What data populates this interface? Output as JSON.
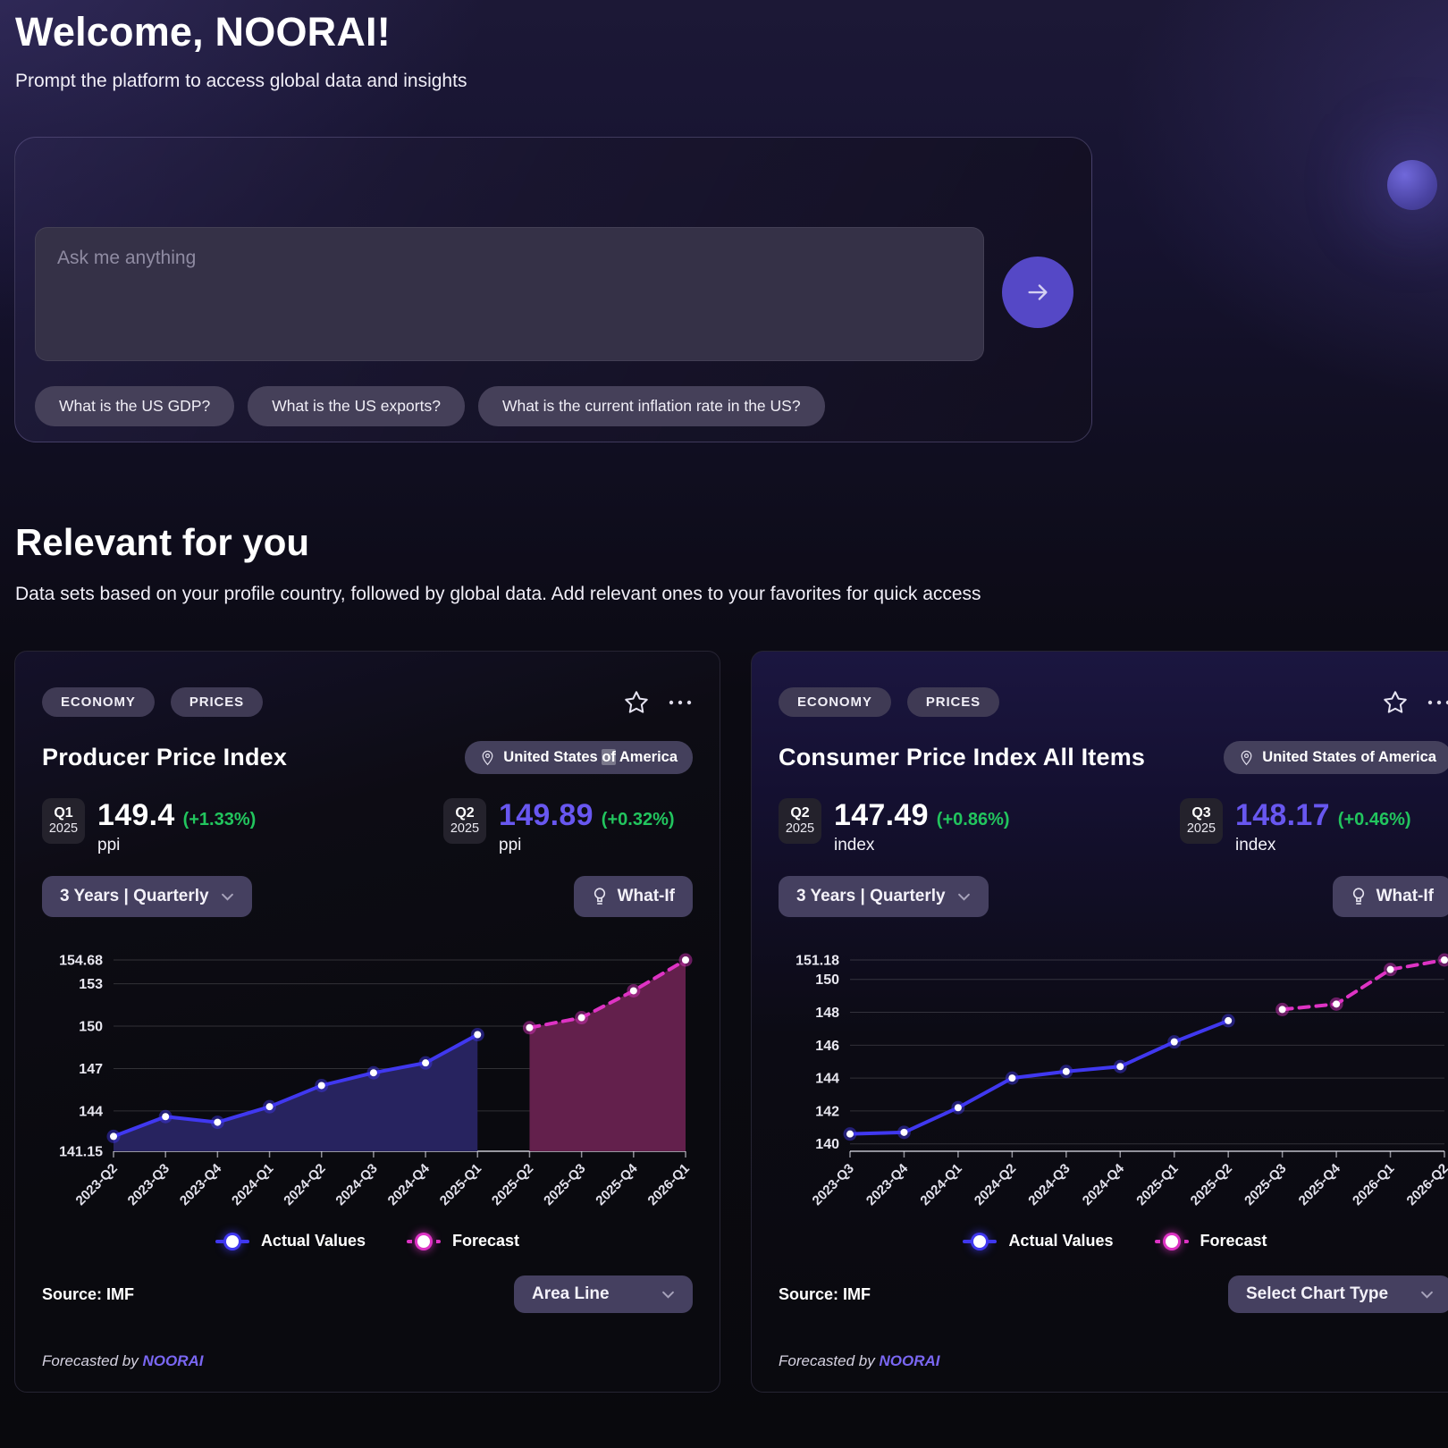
{
  "page": {
    "welcome_title": "Welcome, NOORAI!",
    "welcome_subtitle": "Prompt the platform to access global data and insights",
    "section_title": "Relevant for you",
    "section_subtitle": "Data sets based on your profile country, followed by global data. Add relevant ones to your favorites for quick access"
  },
  "prompt": {
    "placeholder": "Ask me anything",
    "submit_icon": "arrow-right-icon",
    "suggestions": [
      "What is the US GDP?",
      "What is the US exports?",
      "What is the current inflation rate in the US?"
    ]
  },
  "colors": {
    "accent_purple": "#5548c6",
    "value_purple": "#6857f0",
    "positive_green": "#22c55e",
    "actual_blue": "#4038f0",
    "forecast_pink": "#de33c4",
    "brand_purple": "#7a67f3"
  },
  "cards": [
    {
      "tags": [
        "ECONOMY",
        "PRICES"
      ],
      "title": "Producer Price Index",
      "location": "United States of America",
      "location_parts": {
        "pre": "United States ",
        "hl": "of",
        "post": " America"
      },
      "stats": [
        {
          "quarter": "Q1",
          "year": "2025",
          "value": "149.4",
          "change": "(+1.33%)",
          "unit": "ppi"
        },
        {
          "quarter": "Q2",
          "year": "2025",
          "value": "149.89",
          "change": "(+0.32%)",
          "unit": "ppi"
        }
      ],
      "range_selector": "3 Years | Quarterly",
      "whatif_label": "What-If",
      "source": "Source: IMF",
      "chart_type_label": "Area Line",
      "forecast_by": "Forecasted by",
      "brand": "NOORAI"
    },
    {
      "tags": [
        "ECONOMY",
        "PRICES"
      ],
      "title": "Consumer Price Index All Items",
      "location": "United States of America",
      "stats": [
        {
          "quarter": "Q2",
          "year": "2025",
          "value": "147.49",
          "change": "(+0.86%)",
          "unit": "index"
        },
        {
          "quarter": "Q3",
          "year": "2025",
          "value": "148.17",
          "change": "(+0.46%)",
          "unit": "index"
        }
      ],
      "range_selector": "3 Years | Quarterly",
      "whatif_label": "What-If",
      "source": "Source: IMF",
      "chart_type_label": "Select Chart Type",
      "forecast_by": "Forecasted by",
      "brand": "NOORAI"
    }
  ],
  "chart_data": [
    {
      "type": "area",
      "title": "Producer Price Index",
      "categories": [
        "2023-Q2",
        "2023-Q3",
        "2023-Q4",
        "2024-Q1",
        "2024-Q2",
        "2024-Q3",
        "2024-Q4",
        "2025-Q1",
        "2025-Q2",
        "2025-Q3",
        "2025-Q4",
        "2026-Q1"
      ],
      "series": [
        {
          "name": "Actual Values",
          "start_index": 0,
          "values": [
            142.2,
            143.6,
            143.2,
            144.3,
            145.8,
            146.7,
            147.4,
            149.4
          ],
          "color": "#4038f0",
          "fill": "#27235f",
          "dashed": false
        },
        {
          "name": "Forecast",
          "start_index": 8,
          "values": [
            149.89,
            150.6,
            152.5,
            154.68
          ],
          "color": "#de33c4",
          "fill": "#63204c",
          "dashed": true
        }
      ],
      "ylim": [
        141.15,
        154.68
      ],
      "yticks": [
        154.68,
        153,
        150,
        147,
        144,
        141.15
      ],
      "grid": true,
      "legend_position": "bottom"
    },
    {
      "type": "line",
      "title": "Consumer Price Index All Items",
      "categories": [
        "2023-Q3",
        "2023-Q4",
        "2024-Q1",
        "2024-Q2",
        "2024-Q3",
        "2024-Q4",
        "2025-Q1",
        "2025-Q2",
        "2025-Q3",
        "2025-Q4",
        "2026-Q1",
        "2026-Q2"
      ],
      "series": [
        {
          "name": "Actual Values",
          "start_index": 0,
          "values": [
            140.6,
            140.7,
            142.2,
            144.0,
            144.4,
            144.7,
            146.2,
            147.49
          ],
          "color": "#4038f0",
          "fill": null,
          "dashed": false
        },
        {
          "name": "Forecast",
          "start_index": 8,
          "values": [
            148.17,
            148.5,
            150.6,
            151.18
          ],
          "color": "#de33c4",
          "fill": null,
          "dashed": true
        }
      ],
      "ylim": [
        139.55,
        151.18
      ],
      "yticks": [
        151.18,
        150,
        148,
        146,
        144,
        142,
        140
      ],
      "grid": true,
      "legend_position": "bottom"
    }
  ]
}
